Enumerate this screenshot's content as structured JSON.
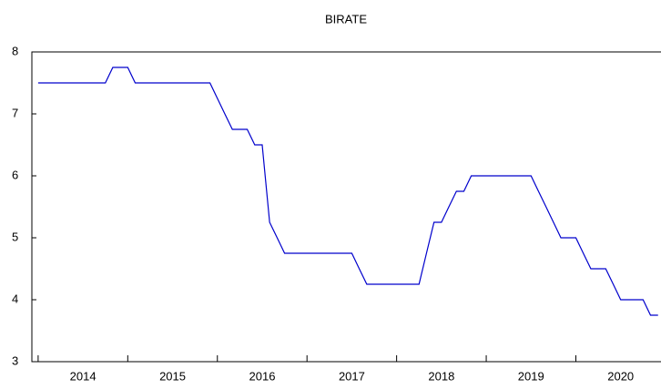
{
  "chart_data": {
    "type": "line",
    "title": "BIRATE",
    "x": [
      2014,
      2014.083,
      2014.167,
      2014.25,
      2014.333,
      2014.417,
      2014.5,
      2014.583,
      2014.667,
      2014.75,
      2014.833,
      2014.917,
      2015,
      2015.083,
      2015.167,
      2015.25,
      2015.333,
      2015.417,
      2015.5,
      2015.583,
      2015.667,
      2015.75,
      2015.833,
      2015.917,
      2016,
      2016.083,
      2016.167,
      2016.25,
      2016.333,
      2016.417,
      2016.5,
      2016.583,
      2016.667,
      2016.75,
      2016.833,
      2016.917,
      2017,
      2017.083,
      2017.167,
      2017.25,
      2017.333,
      2017.417,
      2017.5,
      2017.583,
      2017.667,
      2017.75,
      2017.833,
      2017.917,
      2018,
      2018.083,
      2018.167,
      2018.25,
      2018.333,
      2018.417,
      2018.5,
      2018.583,
      2018.667,
      2018.75,
      2018.833,
      2018.917,
      2019,
      2019.083,
      2019.167,
      2019.25,
      2019.333,
      2019.417,
      2019.5,
      2019.583,
      2019.667,
      2019.75,
      2019.833,
      2019.917,
      2020,
      2020.083,
      2020.167,
      2020.25,
      2020.333,
      2020.417,
      2020.5,
      2020.583,
      2020.667,
      2020.75,
      2020.833,
      2020.917
    ],
    "series": [
      {
        "name": "BIRATE",
        "color": "#0000cc",
        "values": [
          7.5,
          7.5,
          7.5,
          7.5,
          7.5,
          7.5,
          7.5,
          7.5,
          7.5,
          7.5,
          7.75,
          7.75,
          7.75,
          7.5,
          7.5,
          7.5,
          7.5,
          7.5,
          7.5,
          7.5,
          7.5,
          7.5,
          7.5,
          7.5,
          7.25,
          7.0,
          6.75,
          6.75,
          6.75,
          6.5,
          6.5,
          5.25,
          5.0,
          4.75,
          4.75,
          4.75,
          4.75,
          4.75,
          4.75,
          4.75,
          4.75,
          4.75,
          4.75,
          4.5,
          4.25,
          4.25,
          4.25,
          4.25,
          4.25,
          4.25,
          4.25,
          4.25,
          4.75,
          5.25,
          5.25,
          5.5,
          5.75,
          5.75,
          6.0,
          6.0,
          6.0,
          6.0,
          6.0,
          6.0,
          6.0,
          6.0,
          6.0,
          5.75,
          5.5,
          5.25,
          5.0,
          5.0,
          5.0,
          4.75,
          4.5,
          4.5,
          4.5,
          4.25,
          4.0,
          4.0,
          4.0,
          4.0,
          3.75,
          3.75
        ]
      }
    ],
    "xlim": [
      2013.93,
      2020.95
    ],
    "xticks": [
      2014,
      2015,
      2016,
      2017,
      2018,
      2019,
      2020
    ],
    "ylim": [
      3,
      8
    ],
    "yticks": [
      3,
      4,
      5,
      6,
      7,
      8
    ],
    "grid": false
  }
}
